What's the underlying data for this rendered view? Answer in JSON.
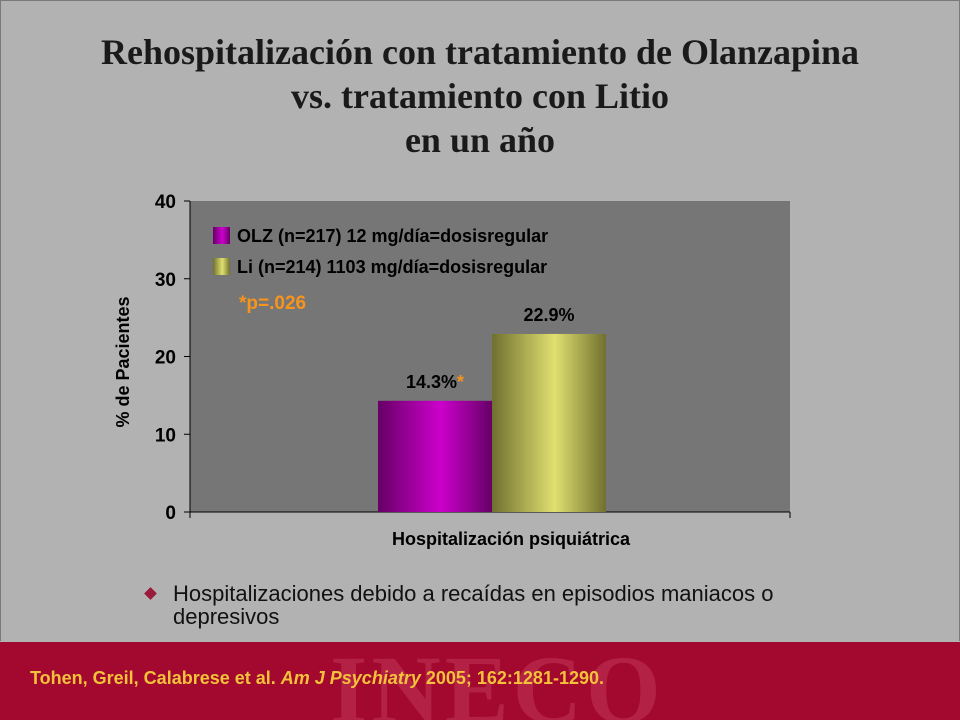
{
  "title_lines": [
    "Rehospitalización con tratamiento de Olanzapina",
    "vs. tratamiento con Litio",
    "en un año"
  ],
  "chart_data": {
    "type": "bar",
    "categories": [
      "Hospitalización psiquiátrica"
    ],
    "series": [
      {
        "name": "OLZ (n=217) 12 mg/día=dosisregular",
        "values": [
          14.3
        ],
        "label": "14.3%",
        "label_marker": "*",
        "color": "#cc00cc"
      },
      {
        "name": "Li (n=214) 1103 mg/día=dosisregular",
        "values": [
          22.9
        ],
        "label": "22.9%",
        "color": "#e0e070"
      }
    ],
    "xlabel": "Hospitalización psiquiátrica",
    "ylabel": "% de Pacientes",
    "ylim": [
      0,
      40
    ],
    "yticks": [
      0,
      10,
      20,
      30,
      40
    ],
    "annotation": "*p=.026",
    "legend_position": "top-left",
    "grid": false,
    "plot_background": "#767676"
  },
  "bullet": {
    "text": "Hospitalizaciones debido a recaídas en episodios maniacos o depresivos"
  },
  "footer": {
    "authors": "Tohen, Greil, Calabrese et al. ",
    "journal": "Am J Psychiatry",
    "details": " 2005; 162:1281-1290.",
    "watermark": "INECO"
  },
  "colors": {
    "annotation": "#f7941d",
    "footer_background": "#a3082e",
    "footer_text": "#f3c13a"
  }
}
